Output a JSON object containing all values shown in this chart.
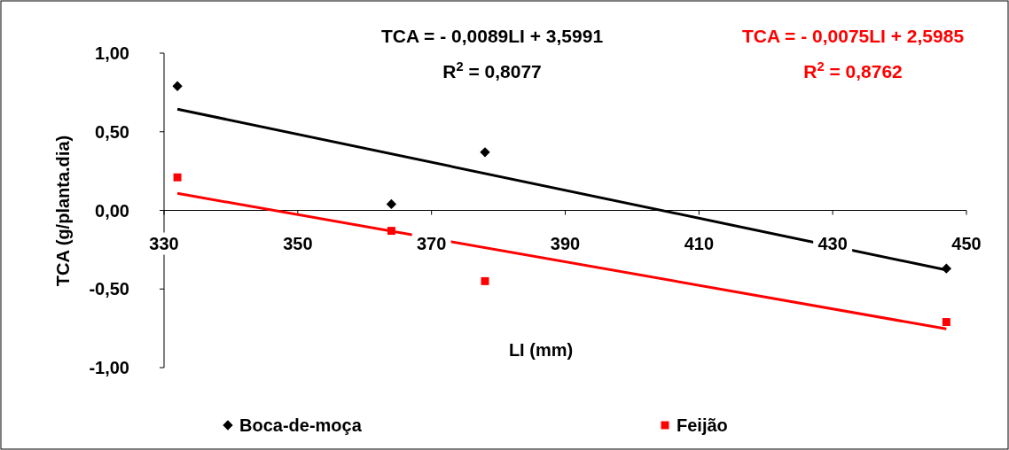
{
  "chart_data": {
    "type": "scatter",
    "xlabel": "LI (mm)",
    "ylabel": "TCA (g/planta.dia)",
    "xlim": [
      330,
      450
    ],
    "xticks": [
      330,
      350,
      370,
      390,
      410,
      430,
      450
    ],
    "ylim": [
      -1,
      1
    ],
    "yticks": [
      {
        "value": -1,
        "label": "-1,00"
      },
      {
        "value": -0.5,
        "label": "-0,50"
      },
      {
        "value": 0,
        "label": "0,00"
      },
      {
        "value": 0.5,
        "label": "0,50"
      },
      {
        "value": 1,
        "label": "1,00"
      }
    ],
    "legend": "bottom",
    "grid": false,
    "series": [
      {
        "name": "Boca-de-moça",
        "color": "#000000",
        "marker": "diamond",
        "x": [
          332,
          364,
          378,
          447
        ],
        "values": [
          0.79,
          0.04,
          0.37,
          -0.37
        ]
      },
      {
        "name": "Feijão",
        "color": "#ff0000",
        "marker": "square",
        "x": [
          332,
          364,
          378,
          447
        ],
        "values": [
          0.21,
          -0.13,
          -0.45,
          -0.71
        ]
      },
      {
        "type": "line",
        "color": "#000000",
        "marker": "none",
        "x": [
          332,
          447
        ],
        "values": [
          0.644,
          -0.379
        ]
      },
      {
        "type": "line",
        "color": "#ff0000",
        "marker": "none",
        "x": [
          332,
          447
        ],
        "values": [
          0.108,
          -0.754
        ]
      }
    ],
    "annotations": [
      "TCA = - 0,0089LI + 3,5991",
      "R$^{2}$ = 0,8077",
      "TCA = - 0,0075LI + 2,5985",
      "R$^{2}$ = 0,8762"
    ]
  }
}
